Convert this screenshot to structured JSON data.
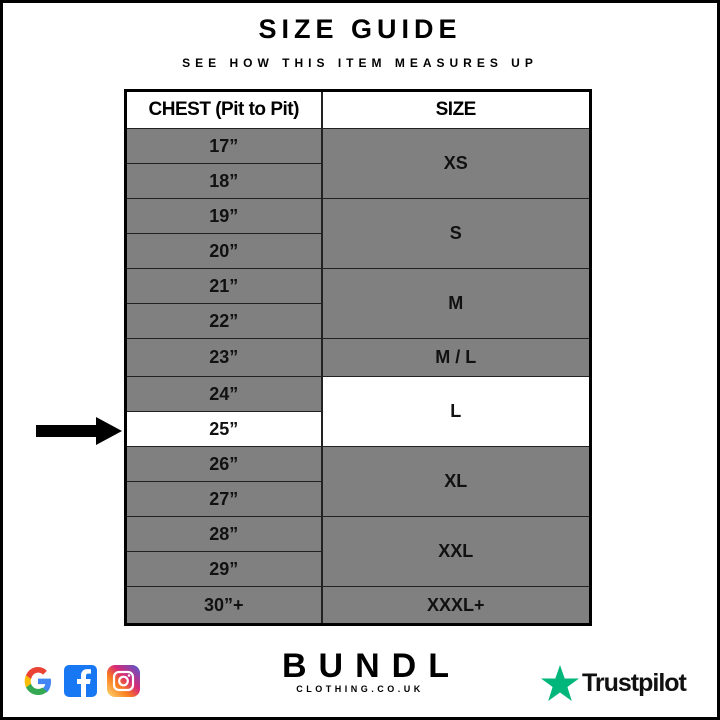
{
  "header": {
    "title": "SIZE GUIDE",
    "subtitle": "SEE HOW THIS ITEM MEASURES UP"
  },
  "table": {
    "headers": [
      "CHEST (Pit to Pit)",
      "SIZE"
    ],
    "chest": [
      "17”",
      "18”",
      "19”",
      "20”",
      "21”",
      "22”",
      "23”",
      "24”",
      "25”",
      "26”",
      "27”",
      "28”",
      "29”",
      "30”+"
    ],
    "sizes": [
      "XS",
      "S",
      "M",
      "M / L",
      "L",
      "XL",
      "XXL",
      "XXXL+"
    ],
    "highlighted_chest": "25”",
    "highlighted_size": "L"
  },
  "colors": {
    "row_bg": "#808080",
    "highlight_bg": "#ffffff",
    "trustpilot_green": "#00b67a"
  },
  "footer": {
    "brand": "BUNDL",
    "brand_sub": "CLOTHING.CO.UK",
    "trustpilot": "Trustpilot",
    "social_icons": [
      "google-icon",
      "facebook-icon",
      "instagram-icon"
    ]
  }
}
